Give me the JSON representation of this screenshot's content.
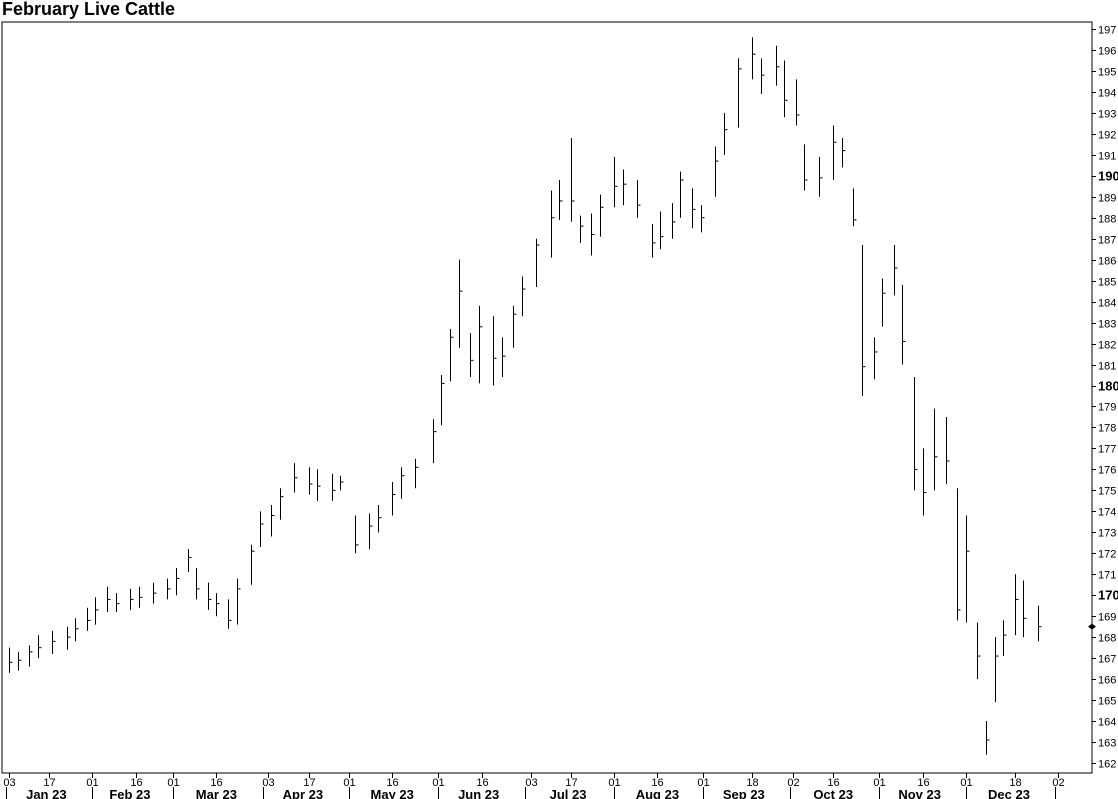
{
  "chart_data": {
    "type": "ohlc",
    "title": "February Live Cattle",
    "ylim": [
      161.5,
      197.4
    ],
    "y_ticks": [
      162,
      163,
      164,
      165,
      166,
      167,
      168,
      169,
      170,
      171,
      172,
      173,
      174,
      175,
      176,
      177,
      178,
      179,
      180,
      181,
      182,
      183,
      184,
      185,
      186,
      187,
      188,
      189,
      190,
      191,
      192,
      193,
      194,
      195,
      196,
      197
    ],
    "y_major_ticks": [
      170,
      180,
      190
    ],
    "x_range": [
      "2023-01-02",
      "2024-01-02"
    ],
    "x_day_ticks": [
      {
        "date": "2023-01-03",
        "label": "03"
      },
      {
        "date": "2023-01-17",
        "label": "17"
      },
      {
        "date": "2023-02-01",
        "label": "01"
      },
      {
        "date": "2023-02-16",
        "label": "16"
      },
      {
        "date": "2023-03-01",
        "label": "01"
      },
      {
        "date": "2023-03-16",
        "label": "16"
      },
      {
        "date": "2023-04-03",
        "label": "03"
      },
      {
        "date": "2023-04-17",
        "label": "17"
      },
      {
        "date": "2023-05-01",
        "label": "01"
      },
      {
        "date": "2023-05-16",
        "label": "16"
      },
      {
        "date": "2023-06-01",
        "label": "01"
      },
      {
        "date": "2023-06-16",
        "label": "16"
      },
      {
        "date": "2023-07-03",
        "label": "03"
      },
      {
        "date": "2023-07-17",
        "label": "17"
      },
      {
        "date": "2023-08-01",
        "label": "01"
      },
      {
        "date": "2023-08-16",
        "label": "16"
      },
      {
        "date": "2023-09-01",
        "label": "01"
      },
      {
        "date": "2023-09-18",
        "label": "18"
      },
      {
        "date": "2023-10-02",
        "label": "02"
      },
      {
        "date": "2023-10-16",
        "label": "16"
      },
      {
        "date": "2023-11-01",
        "label": "01"
      },
      {
        "date": "2023-11-16",
        "label": "16"
      },
      {
        "date": "2023-12-01",
        "label": "01"
      },
      {
        "date": "2023-12-18",
        "label": "18"
      },
      {
        "date": "2024-01-02",
        "label": "02"
      }
    ],
    "x_month_labels": [
      {
        "date": "2023-01-16",
        "label": "Jan 23"
      },
      {
        "date": "2023-02-14",
        "label": "Feb 23"
      },
      {
        "date": "2023-03-16",
        "label": "Mar 23"
      },
      {
        "date": "2023-04-15",
        "label": "Apr 23"
      },
      {
        "date": "2023-05-16",
        "label": "May 23"
      },
      {
        "date": "2023-06-15",
        "label": "Jun 23"
      },
      {
        "date": "2023-07-16",
        "label": "Jul 23"
      },
      {
        "date": "2023-08-16",
        "label": "Aug 23"
      },
      {
        "date": "2023-09-15",
        "label": "Sep 23"
      },
      {
        "date": "2023-10-16",
        "label": "Oct 23"
      },
      {
        "date": "2023-11-15",
        "label": "Nov 23"
      },
      {
        "date": "2023-12-16",
        "label": "Dec 23"
      }
    ],
    "x_month_separators": [
      "2023-02-01",
      "2023-03-01",
      "2023-04-01",
      "2023-05-01",
      "2023-06-01",
      "2023-07-01",
      "2023-08-01",
      "2023-09-01",
      "2023-10-01",
      "2023-11-01",
      "2023-12-01",
      "2024-01-01"
    ],
    "last_value": 168.5,
    "series": [
      {
        "values": [
          {
            "date": "2023-01-03",
            "high": 167.5,
            "low": 166.3,
            "close": 166.8
          },
          {
            "date": "2023-01-06",
            "high": 167.3,
            "low": 166.4,
            "close": 166.9
          },
          {
            "date": "2023-01-10",
            "high": 167.6,
            "low": 166.6,
            "close": 167.3
          },
          {
            "date": "2023-01-13",
            "high": 168.1,
            "low": 167.0,
            "close": 167.5
          },
          {
            "date": "2023-01-18",
            "high": 168.3,
            "low": 167.2,
            "close": 167.8
          },
          {
            "date": "2023-01-23",
            "high": 168.5,
            "low": 167.4,
            "close": 168.0
          },
          {
            "date": "2023-01-26",
            "high": 168.9,
            "low": 167.8,
            "close": 168.4
          },
          {
            "date": "2023-01-30",
            "high": 169.4,
            "low": 168.3,
            "close": 168.8
          },
          {
            "date": "2023-02-02",
            "high": 169.9,
            "low": 168.6,
            "close": 169.3
          },
          {
            "date": "2023-02-06",
            "high": 170.4,
            "low": 169.2,
            "close": 169.8
          },
          {
            "date": "2023-02-09",
            "high": 170.1,
            "low": 169.2,
            "close": 169.6
          },
          {
            "date": "2023-02-14",
            "high": 170.3,
            "low": 169.3,
            "close": 169.8
          },
          {
            "date": "2023-02-17",
            "high": 170.4,
            "low": 169.4,
            "close": 169.9
          },
          {
            "date": "2023-02-22",
            "high": 170.6,
            "low": 169.6,
            "close": 170.1
          },
          {
            "date": "2023-02-27",
            "high": 170.8,
            "low": 169.8,
            "close": 170.3
          },
          {
            "date": "2023-03-02",
            "high": 171.3,
            "low": 170.0,
            "close": 170.8
          },
          {
            "date": "2023-03-06",
            "high": 172.2,
            "low": 171.1,
            "close": 171.8
          },
          {
            "date": "2023-03-09",
            "high": 171.3,
            "low": 169.8,
            "close": 170.3
          },
          {
            "date": "2023-03-13",
            "high": 170.6,
            "low": 169.3,
            "close": 169.8
          },
          {
            "date": "2023-03-16",
            "high": 170.1,
            "low": 169.0,
            "close": 169.6
          },
          {
            "date": "2023-03-20",
            "high": 169.8,
            "low": 168.4,
            "close": 168.8
          },
          {
            "date": "2023-03-23",
            "high": 170.8,
            "low": 168.6,
            "close": 170.3
          },
          {
            "date": "2023-03-28",
            "high": 172.4,
            "low": 170.5,
            "close": 172.1
          },
          {
            "date": "2023-03-31",
            "high": 174.0,
            "low": 172.3,
            "close": 173.4
          },
          {
            "date": "2023-04-04",
            "high": 174.3,
            "low": 172.8,
            "close": 173.8
          },
          {
            "date": "2023-04-07",
            "high": 175.1,
            "low": 173.6,
            "close": 174.7
          },
          {
            "date": "2023-04-12",
            "high": 176.3,
            "low": 174.9,
            "close": 175.6
          },
          {
            "date": "2023-04-17",
            "high": 176.1,
            "low": 174.8,
            "close": 175.3
          },
          {
            "date": "2023-04-20",
            "high": 176.0,
            "low": 174.5,
            "close": 175.2
          },
          {
            "date": "2023-04-25",
            "high": 175.8,
            "low": 174.5,
            "close": 175.0
          },
          {
            "date": "2023-04-28",
            "high": 175.7,
            "low": 175.0,
            "close": 175.4
          },
          {
            "date": "2023-05-03",
            "high": 173.8,
            "low": 172.0,
            "close": 172.4
          },
          {
            "date": "2023-05-08",
            "high": 173.9,
            "low": 172.2,
            "close": 173.3
          },
          {
            "date": "2023-05-11",
            "high": 174.3,
            "low": 173.0,
            "close": 173.7
          },
          {
            "date": "2023-05-16",
            "high": 175.4,
            "low": 173.8,
            "close": 174.8
          },
          {
            "date": "2023-05-19",
            "high": 176.1,
            "low": 174.6,
            "close": 175.7
          },
          {
            "date": "2023-05-24",
            "high": 176.5,
            "low": 175.1,
            "close": 176.1
          },
          {
            "date": "2023-05-30",
            "high": 178.4,
            "low": 176.3,
            "close": 177.8
          },
          {
            "date": "2023-06-02",
            "high": 180.5,
            "low": 178.1,
            "close": 180.1
          },
          {
            "date": "2023-06-05",
            "high": 182.7,
            "low": 180.2,
            "close": 182.3
          },
          {
            "date": "2023-06-08",
            "high": 186.0,
            "low": 181.8,
            "close": 184.5
          },
          {
            "date": "2023-06-12",
            "high": 182.5,
            "low": 180.4,
            "close": 181.2
          },
          {
            "date": "2023-06-15",
            "high": 183.8,
            "low": 180.1,
            "close": 182.8
          },
          {
            "date": "2023-06-20",
            "high": 183.3,
            "low": 180.0,
            "close": 181.3
          },
          {
            "date": "2023-06-23",
            "high": 182.3,
            "low": 180.4,
            "close": 181.4
          },
          {
            "date": "2023-06-27",
            "high": 183.8,
            "low": 181.8,
            "close": 183.4
          },
          {
            "date": "2023-06-30",
            "high": 185.2,
            "low": 183.3,
            "close": 184.6
          },
          {
            "date": "2023-07-05",
            "high": 187.0,
            "low": 184.7,
            "close": 186.7
          },
          {
            "date": "2023-07-10",
            "high": 189.3,
            "low": 186.1,
            "close": 188.0
          },
          {
            "date": "2023-07-13",
            "high": 189.8,
            "low": 187.9,
            "close": 188.8
          },
          {
            "date": "2023-07-17",
            "high": 191.8,
            "low": 187.8,
            "close": 188.8
          },
          {
            "date": "2023-07-20",
            "high": 188.1,
            "low": 186.8,
            "close": 187.6
          },
          {
            "date": "2023-07-24",
            "high": 188.2,
            "low": 186.2,
            "close": 187.2
          },
          {
            "date": "2023-07-27",
            "high": 189.1,
            "low": 187.1,
            "close": 188.5
          },
          {
            "date": "2023-08-01",
            "high": 190.9,
            "low": 188.5,
            "close": 189.5
          },
          {
            "date": "2023-08-04",
            "high": 190.3,
            "low": 188.6,
            "close": 189.6
          },
          {
            "date": "2023-08-09",
            "high": 189.8,
            "low": 188.0,
            "close": 188.6
          },
          {
            "date": "2023-08-14",
            "high": 187.7,
            "low": 186.1,
            "close": 186.8
          },
          {
            "date": "2023-08-17",
            "high": 188.3,
            "low": 186.5,
            "close": 187.1
          },
          {
            "date": "2023-08-21",
            "high": 188.7,
            "low": 187.0,
            "close": 187.8
          },
          {
            "date": "2023-08-24",
            "high": 190.2,
            "low": 188.0,
            "close": 189.8
          },
          {
            "date": "2023-08-28",
            "high": 189.4,
            "low": 187.5,
            "close": 188.4
          },
          {
            "date": "2023-08-31",
            "high": 188.6,
            "low": 187.3,
            "close": 188.0
          },
          {
            "date": "2023-09-05",
            "high": 191.4,
            "low": 189.0,
            "close": 190.7
          },
          {
            "date": "2023-09-08",
            "high": 193.0,
            "low": 191.0,
            "close": 192.2
          },
          {
            "date": "2023-09-13",
            "high": 195.6,
            "low": 192.3,
            "close": 195.1
          },
          {
            "date": "2023-09-18",
            "high": 196.6,
            "low": 194.6,
            "close": 195.8
          },
          {
            "date": "2023-09-21",
            "high": 195.6,
            "low": 193.9,
            "close": 194.8
          },
          {
            "date": "2023-09-26",
            "high": 196.2,
            "low": 194.3,
            "close": 195.2
          },
          {
            "date": "2023-09-29",
            "high": 195.5,
            "low": 192.8,
            "close": 193.6
          },
          {
            "date": "2023-10-03",
            "high": 194.6,
            "low": 192.4,
            "close": 192.9
          },
          {
            "date": "2023-10-06",
            "high": 191.5,
            "low": 189.3,
            "close": 189.8
          },
          {
            "date": "2023-10-11",
            "high": 190.9,
            "low": 189.0,
            "close": 189.9
          },
          {
            "date": "2023-10-16",
            "high": 192.4,
            "low": 189.8,
            "close": 191.6
          },
          {
            "date": "2023-10-19",
            "high": 191.8,
            "low": 190.4,
            "close": 191.2
          },
          {
            "date": "2023-10-23",
            "high": 189.4,
            "low": 187.6,
            "close": 187.9
          },
          {
            "date": "2023-10-26",
            "high": 186.7,
            "low": 179.5,
            "close": 180.9
          },
          {
            "date": "2023-10-30",
            "high": 182.3,
            "low": 180.3,
            "close": 181.6
          },
          {
            "date": "2023-11-02",
            "high": 185.1,
            "low": 182.8,
            "close": 184.4
          },
          {
            "date": "2023-11-06",
            "high": 186.7,
            "low": 184.3,
            "close": 185.6
          },
          {
            "date": "2023-11-09",
            "high": 184.8,
            "low": 181.0,
            "close": 182.1
          },
          {
            "date": "2023-11-13",
            "high": 180.4,
            "low": 175.0,
            "close": 176.0
          },
          {
            "date": "2023-11-16",
            "high": 177.0,
            "low": 173.8,
            "close": 174.9
          },
          {
            "date": "2023-11-20",
            "high": 178.9,
            "low": 175.0,
            "close": 176.6
          },
          {
            "date": "2023-11-24",
            "high": 178.5,
            "low": 175.3,
            "close": 176.4
          },
          {
            "date": "2023-11-28",
            "high": 175.1,
            "low": 168.8,
            "close": 169.3
          },
          {
            "date": "2023-12-01",
            "high": 173.8,
            "low": 168.7,
            "close": 172.1
          },
          {
            "date": "2023-12-05",
            "high": 168.7,
            "low": 166.0,
            "close": 167.1
          },
          {
            "date": "2023-12-08",
            "high": 164.0,
            "low": 162.4,
            "close": 163.1
          },
          {
            "date": "2023-12-11",
            "high": 168.0,
            "low": 164.9,
            "close": 167.1
          },
          {
            "date": "2023-12-14",
            "high": 168.8,
            "low": 167.1,
            "close": 168.1
          },
          {
            "date": "2023-12-18",
            "high": 171.0,
            "low": 168.1,
            "close": 169.8
          },
          {
            "date": "2023-12-21",
            "high": 170.7,
            "low": 168.0,
            "close": 168.9
          },
          {
            "date": "2023-12-26",
            "high": 169.5,
            "low": 167.8,
            "close": 168.5
          }
        ]
      }
    ]
  }
}
